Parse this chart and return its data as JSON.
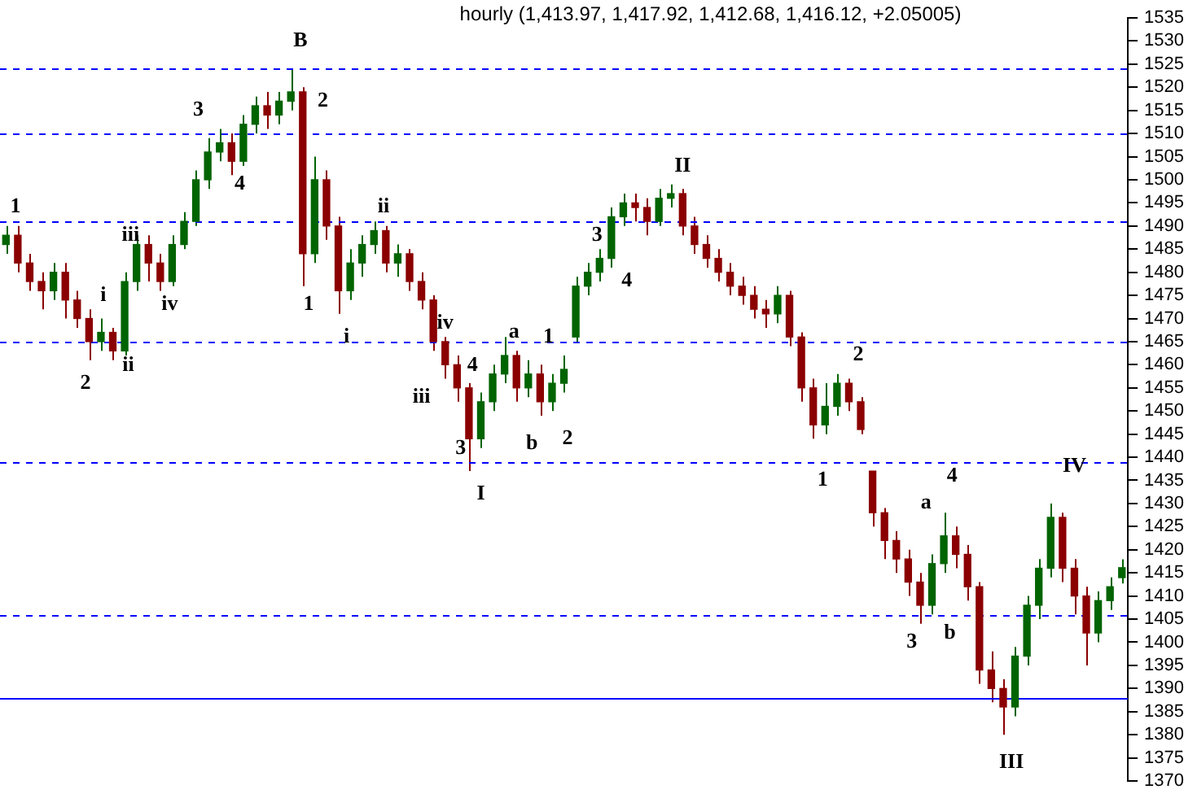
{
  "chart_data": {
    "type": "candlestick",
    "title": "hourly (1,413.97, 1,417.92, 1,412.68, 1,416.12, +2.05005)",
    "categories": [
      null,
      null,
      null,
      null,
      null,
      null,
      null,
      null,
      null,
      null,
      null,
      null,
      null,
      null,
      null,
      null,
      null,
      null,
      null,
      null,
      null,
      null,
      null,
      null,
      null,
      null,
      null,
      null,
      null,
      null,
      null,
      null,
      null,
      null,
      null,
      null,
      null,
      null,
      null,
      null,
      null,
      null,
      null,
      null,
      null,
      null,
      null,
      null,
      null,
      null,
      null,
      null,
      null,
      null,
      null,
      null,
      null,
      null,
      null,
      null,
      null,
      null,
      null,
      null,
      null,
      null,
      null,
      null,
      null,
      null,
      null,
      null,
      null,
      null,
      null,
      null,
      null,
      null,
      null,
      null,
      null,
      null,
      null,
      null,
      null,
      null,
      null,
      null,
      null,
      null,
      null,
      null,
      null,
      null,
      null
    ],
    "ohlc": [
      [
        1486,
        1490,
        1484,
        1488
      ],
      [
        1488,
        1490,
        1480,
        1482
      ],
      [
        1482,
        1484,
        1476,
        1478
      ],
      [
        1478,
        1480,
        1472,
        1476
      ],
      [
        1476,
        1482,
        1474,
        1480
      ],
      [
        1480,
        1482,
        1470,
        1474
      ],
      [
        1474,
        1476,
        1468,
        1470
      ],
      [
        1470,
        1472,
        1461,
        1465
      ],
      [
        1465,
        1470,
        1463,
        1467
      ],
      [
        1467,
        1468,
        1461,
        1463
      ],
      [
        1463,
        1480,
        1462,
        1478
      ],
      [
        1478,
        1488,
        1476,
        1486
      ],
      [
        1486,
        1488,
        1478,
        1482
      ],
      [
        1482,
        1484,
        1476,
        1478
      ],
      [
        1478,
        1488,
        1477,
        1486
      ],
      [
        1486,
        1493,
        1485,
        1491
      ],
      [
        1491,
        1502,
        1490,
        1500
      ],
      [
        1500,
        1509,
        1498,
        1506
      ],
      [
        1506,
        1511,
        1504,
        1508
      ],
      [
        1508,
        1510,
        1501,
        1504
      ],
      [
        1504,
        1514,
        1503,
        1512
      ],
      [
        1512,
        1518,
        1510,
        1516
      ],
      [
        1516,
        1519,
        1511,
        1514
      ],
      [
        1514,
        1519,
        1512,
        1517
      ],
      [
        1517,
        1524,
        1515,
        1519
      ],
      [
        1519,
        1520,
        1477,
        1484
      ],
      [
        1484,
        1505,
        1482,
        1500
      ],
      [
        1500,
        1502,
        1487,
        1490
      ],
      [
        1490,
        1492,
        1471,
        1476
      ],
      [
        1476,
        1485,
        1474,
        1482
      ],
      [
        1482,
        1488,
        1479,
        1486
      ],
      [
        1486,
        1491,
        1484,
        1489
      ],
      [
        1489,
        1490,
        1480,
        1482
      ],
      [
        1482,
        1486,
        1479,
        1484
      ],
      [
        1484,
        1485,
        1476,
        1478
      ],
      [
        1478,
        1480,
        1472,
        1474
      ],
      [
        1474,
        1475,
        1463,
        1465
      ],
      [
        1465,
        1466,
        1457,
        1460
      ],
      [
        1460,
        1462,
        1452,
        1455
      ],
      [
        1455,
        1456,
        1437,
        1444
      ],
      [
        1444,
        1454,
        1442,
        1452
      ],
      [
        1452,
        1460,
        1450,
        1458
      ],
      [
        1458,
        1466,
        1456,
        1462
      ],
      [
        1462,
        1463,
        1452,
        1455
      ],
      [
        1455,
        1461,
        1453,
        1458
      ],
      [
        1458,
        1460,
        1449,
        1452
      ],
      [
        1452,
        1458,
        1450,
        1456
      ],
      [
        1456,
        1462,
        1454,
        1459
      ],
      [
        1466,
        1479,
        1465,
        1477
      ],
      [
        1477,
        1482,
        1475,
        1480
      ],
      [
        1480,
        1485,
        1478,
        1483
      ],
      [
        1483,
        1494,
        1481,
        1492
      ],
      [
        1492,
        1497,
        1490,
        1495
      ],
      [
        1495,
        1497,
        1491,
        1494
      ],
      [
        1494,
        1496,
        1488,
        1491
      ],
      [
        1491,
        1498,
        1490,
        1496
      ],
      [
        1496,
        1499,
        1494,
        1497
      ],
      [
        1497,
        1498,
        1488,
        1490
      ],
      [
        1490,
        1492,
        1484,
        1486
      ],
      [
        1486,
        1488,
        1481,
        1483
      ],
      [
        1483,
        1485,
        1478,
        1480
      ],
      [
        1480,
        1482,
        1475,
        1477
      ],
      [
        1477,
        1479,
        1473,
        1475
      ],
      [
        1475,
        1477,
        1470,
        1472
      ],
      [
        1472,
        1474,
        1468,
        1471
      ],
      [
        1471,
        1477,
        1469,
        1475
      ],
      [
        1475,
        1476,
        1464,
        1466
      ],
      [
        1466,
        1467,
        1452,
        1455
      ],
      [
        1455,
        1457,
        1444,
        1447
      ],
      [
        1447,
        1456,
        1445,
        1451
      ],
      [
        1451,
        1458,
        1449,
        1456
      ],
      [
        1456,
        1457,
        1450,
        1452
      ],
      [
        1452,
        1453,
        1445,
        1446
      ],
      [
        1437,
        1437,
        1425,
        1428
      ],
      [
        1428,
        1429,
        1418,
        1422
      ],
      [
        1422,
        1424,
        1415,
        1418
      ],
      [
        1418,
        1420,
        1410,
        1413
      ],
      [
        1413,
        1415,
        1404,
        1408
      ],
      [
        1408,
        1419,
        1406,
        1417
      ],
      [
        1417,
        1428,
        1415,
        1423
      ],
      [
        1423,
        1425,
        1416,
        1419
      ],
      [
        1419,
        1421,
        1409,
        1412
      ],
      [
        1412,
        1413,
        1391,
        1394
      ],
      [
        1394,
        1398,
        1387,
        1390
      ],
      [
        1390,
        1392,
        1380,
        1386
      ],
      [
        1386,
        1399,
        1384,
        1397
      ],
      [
        1397,
        1410,
        1395,
        1408
      ],
      [
        1408,
        1418,
        1405,
        1416
      ],
      [
        1416,
        1430,
        1414,
        1427
      ],
      [
        1427,
        1428,
        1413,
        1416
      ],
      [
        1416,
        1418,
        1406,
        1410
      ],
      [
        1410,
        1412,
        1395,
        1402
      ],
      [
        1402,
        1411,
        1400,
        1409
      ],
      [
        1409,
        1414,
        1407,
        1412
      ],
      [
        1413.97,
        1417.92,
        1412.68,
        1416.12
      ]
    ],
    "colors": [
      "#006400",
      "#8b0000",
      "#8b0000",
      "#8b0000",
      "#006400",
      "#8b0000",
      "#8b0000",
      "#8b0000",
      "#006400",
      "#8b0000",
      "#006400",
      "#006400",
      "#8b0000",
      "#8b0000",
      "#006400",
      "#006400",
      "#006400",
      "#006400",
      "#006400",
      "#8b0000",
      "#006400",
      "#006400",
      "#8b0000",
      "#006400",
      "#006400",
      "#8b0000",
      "#006400",
      "#8b0000",
      "#8b0000",
      "#006400",
      "#006400",
      "#006400",
      "#8b0000",
      "#006400",
      "#8b0000",
      "#8b0000",
      "#8b0000",
      "#8b0000",
      "#8b0000",
      "#8b0000",
      "#006400",
      "#006400",
      "#006400",
      "#8b0000",
      "#006400",
      "#8b0000",
      "#006400",
      "#006400",
      "#006400",
      "#006400",
      "#006400",
      "#006400",
      "#006400",
      "#8b0000",
      "#8b0000",
      "#006400",
      "#006400",
      "#8b0000",
      "#8b0000",
      "#8b0000",
      "#8b0000",
      "#8b0000",
      "#8b0000",
      "#8b0000",
      "#8b0000",
      "#006400",
      "#8b0000",
      "#8b0000",
      "#8b0000",
      "#006400",
      "#006400",
      "#8b0000",
      "#8b0000",
      "#8b0000",
      "#8b0000",
      "#8b0000",
      "#8b0000",
      "#8b0000",
      "#006400",
      "#006400",
      "#8b0000",
      "#8b0000",
      "#8b0000",
      "#8b0000",
      "#8b0000",
      "#006400",
      "#006400",
      "#006400",
      "#006400",
      "#8b0000",
      "#8b0000",
      "#8b0000",
      "#006400",
      "#006400",
      "#006400"
    ],
    "ylim": [
      1370,
      1535
    ],
    "yticks": [
      1370,
      1375,
      1380,
      1385,
      1390,
      1395,
      1400,
      1405,
      1410,
      1415,
      1420,
      1425,
      1430,
      1435,
      1440,
      1445,
      1450,
      1455,
      1460,
      1465,
      1470,
      1475,
      1480,
      1485,
      1490,
      1495,
      1500,
      1505,
      1510,
      1515,
      1520,
      1525,
      1530,
      1535
    ],
    "tick_labels": "y",
    "grid": false,
    "legend": false,
    "ref_lines": [
      {
        "axis": "y",
        "value": 1524,
        "color": "#0000ff",
        "line_style": "dashed"
      },
      {
        "axis": "y",
        "value": 1510,
        "color": "#0000ff",
        "line_style": "dashed"
      },
      {
        "axis": "y",
        "value": 1491,
        "color": "#0000ff",
        "line_style": "dashed"
      },
      {
        "axis": "y",
        "value": 1465,
        "color": "#0000ff",
        "line_style": "dashed"
      },
      {
        "axis": "y",
        "value": 1439,
        "color": "#0000ff",
        "line_style": "dashed"
      },
      {
        "axis": "y",
        "value": 1406,
        "color": "#0000ff",
        "line_style": "dashed"
      },
      {
        "axis": "y",
        "value": 1388,
        "color": "#0000ff",
        "line_style": "solid"
      }
    ],
    "annotations": [
      "1",
      "2",
      "i",
      "ii",
      "iii",
      "iv",
      "3",
      "4",
      "B",
      "2",
      "1",
      "i",
      "ii",
      "iii",
      "iv",
      "3",
      "4",
      "I",
      "a",
      "b",
      "1",
      "2",
      "3",
      "4",
      "II",
      "1",
      "2",
      "3",
      "a",
      "b",
      "4",
      "III",
      "IV"
    ]
  }
}
